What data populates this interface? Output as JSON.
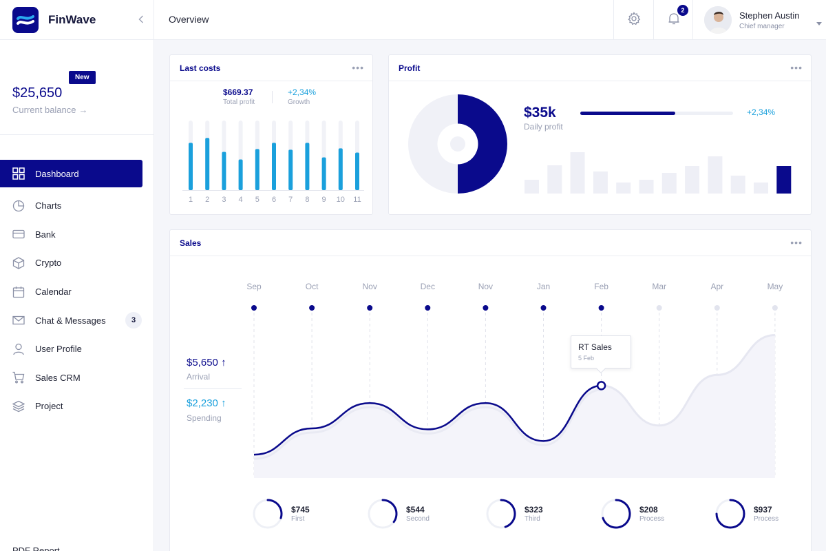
{
  "app": {
    "name": "FinWave"
  },
  "sidebar": {
    "balance": {
      "badge": "New",
      "amount": "$25,650",
      "label": "Current balance",
      "arrow": "→"
    },
    "items": [
      {
        "label": "Dashboard",
        "icon": "grid-icon",
        "active": true
      },
      {
        "label": "Charts",
        "icon": "pie-icon"
      },
      {
        "label": "Bank",
        "icon": "card-icon"
      },
      {
        "label": "Crypto",
        "icon": "cube-icon"
      },
      {
        "label": "Calendar",
        "icon": "calendar-icon"
      },
      {
        "label": "Chat & Messages",
        "icon": "mail-icon",
        "count": "3"
      },
      {
        "label": "User Profile",
        "icon": "user-icon"
      },
      {
        "label": "Sales CRM",
        "icon": "cart-icon"
      },
      {
        "label": "Project",
        "icon": "layers-icon"
      }
    ],
    "footer": "PDF Report"
  },
  "header": {
    "title": "Overview",
    "notifications": "2",
    "user": {
      "name": "Stephen Austin",
      "role": "Chief manager"
    }
  },
  "last_costs": {
    "title": "Last costs",
    "total": "$669.37",
    "total_label": "Total profit",
    "growth": "+2,34%",
    "growth_label": "Growth"
  },
  "profit": {
    "title": "Profit",
    "amount": "$35k",
    "label": "Daily profit",
    "growth": "+2,34%",
    "progress": 0.62
  },
  "sales": {
    "title": "Sales",
    "arrival": "$5,650",
    "arrival_label": "Arrival",
    "spending": "$2,230",
    "spending_label": "Spending",
    "up_arrow": "↑",
    "tooltip": {
      "title": "RT Sales",
      "sub": "5 Feb"
    },
    "kpis": [
      {
        "value": "$745",
        "label": "First",
        "progress": 0.3
      },
      {
        "value": "$544",
        "label": "Second",
        "progress": 0.35
      },
      {
        "value": "$323",
        "label": "Third",
        "progress": 0.45
      },
      {
        "value": "$208",
        "label": "Process",
        "progress": 0.7
      },
      {
        "value": "$937",
        "label": "Process",
        "progress": 0.75
      }
    ]
  },
  "chart_data": [
    {
      "type": "bar",
      "categories": [
        "1",
        "2",
        "3",
        "4",
        "5",
        "6",
        "7",
        "8",
        "9",
        "10",
        "11"
      ],
      "values": [
        68,
        75,
        55,
        44,
        59,
        68,
        58,
        68,
        47,
        60,
        54
      ],
      "ylim": [
        0,
        100
      ],
      "color": "#1aa0dc"
    },
    {
      "type": "pie",
      "values": [
        50,
        50
      ],
      "colors": [
        "#0a0a8c",
        "#f0f1f7"
      ],
      "inner_radius_ratio": 0.41
    },
    {
      "type": "bar",
      "values": [
        20,
        41,
        60,
        32,
        16,
        20,
        30,
        40,
        54,
        26,
        16,
        40
      ],
      "highlight_last": true,
      "ylim": [
        0,
        65
      ],
      "colors": [
        "#eeeff6",
        "#0a0a8c"
      ]
    },
    {
      "type": "line",
      "categories": [
        "Sep",
        "Oct",
        "Nov",
        "Dec",
        "Nov",
        "Jan",
        "Feb",
        "Mar",
        "Apr",
        "May"
      ],
      "active_through": "Feb",
      "values": [
        24,
        51,
        77,
        50,
        77,
        38,
        95,
        54,
        106,
        147
      ],
      "ylim": [
        0,
        170
      ],
      "color": "#0a0a8c"
    }
  ]
}
